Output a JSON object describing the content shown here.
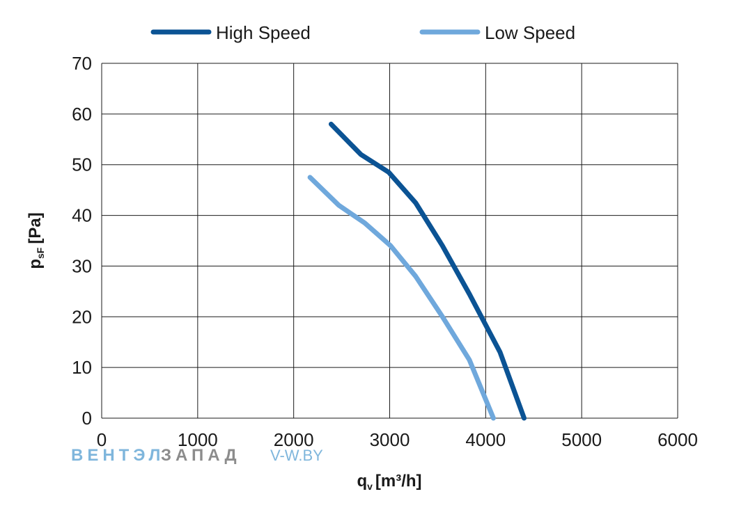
{
  "chart_data": {
    "type": "line",
    "title": "",
    "xlabel": {
      "main": "q",
      "sub": "v",
      "rest": "[m³/h]"
    },
    "ylabel": {
      "main": "p",
      "sub": "sF",
      "rest": "[Pa]"
    },
    "xlim": [
      0,
      6000
    ],
    "ylim": [
      0,
      70
    ],
    "xticks": [
      0,
      1000,
      2000,
      3000,
      4000,
      5000,
      6000
    ],
    "yticks": [
      0,
      10,
      20,
      30,
      40,
      50,
      60,
      70
    ],
    "grid": true,
    "legend_position": "top",
    "series": [
      {
        "name": "High Speed",
        "color": "#0b5394",
        "points": [
          [
            2390,
            58
          ],
          [
            2700,
            52
          ],
          [
            2990,
            48.5
          ],
          [
            3270,
            42.5
          ],
          [
            3550,
            34
          ],
          [
            3830,
            24.5
          ],
          [
            4150,
            13
          ],
          [
            4400,
            0
          ]
        ]
      },
      {
        "name": "Low Speed",
        "color": "#6fa8dc",
        "points": [
          [
            2170,
            47.5
          ],
          [
            2470,
            42
          ],
          [
            2740,
            38.5
          ],
          [
            3010,
            34
          ],
          [
            3270,
            28
          ],
          [
            3550,
            20
          ],
          [
            3830,
            11.5
          ],
          [
            4080,
            0
          ]
        ]
      }
    ]
  },
  "watermark": {
    "part1": "ВЕНТЭЛ",
    "part2": "ЗАПАД",
    "part3": "V-W.BY",
    "color1": "#7fb6dc",
    "color2": "#8c8c8c"
  }
}
